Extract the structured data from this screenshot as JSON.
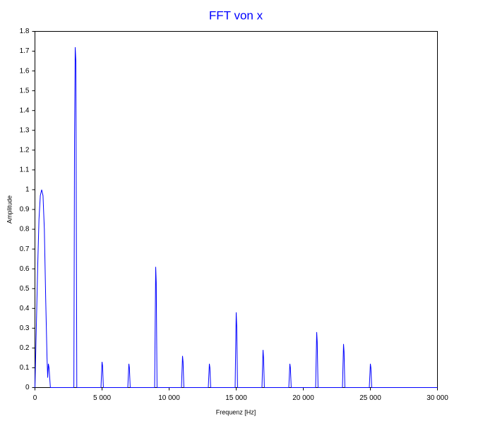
{
  "chart_data": {
    "type": "line",
    "title": "FFT von x",
    "xlabel": "Frequenz [Hz]",
    "ylabel": "Amplitude",
    "xlim": [
      0,
      30000
    ],
    "ylim": [
      0,
      1.8
    ],
    "xticks": [
      0,
      {
        "value": 5000,
        "label": "5 000"
      },
      {
        "value": 10000,
        "label": "10 000"
      },
      {
        "value": 15000,
        "label": "15 000"
      },
      {
        "value": 20000,
        "label": "20 000"
      },
      {
        "value": 25000,
        "label": "25 000"
      },
      {
        "value": 30000,
        "label": "30 000"
      }
    ],
    "yticks": [
      0,
      0.1,
      0.2,
      0.3,
      0.4,
      0.5,
      0.6,
      0.7,
      0.8,
      0.9,
      1,
      1.1,
      1.2,
      1.3,
      1.4,
      1.5,
      1.6,
      1.7,
      1.8
    ],
    "series": [
      {
        "color": "#0000ff",
        "x": [
          0,
          100,
          200,
          300,
          400,
          500,
          600,
          700,
          800,
          900,
          950,
          1000,
          1050,
          1150,
          2900,
          2950,
          3000,
          3050,
          3120,
          4920,
          5000,
          5040,
          5100,
          6920,
          7000,
          7040,
          7100,
          8920,
          9000,
          9040,
          9100,
          10920,
          11000,
          11040,
          11100,
          12920,
          13000,
          13040,
          13100,
          14920,
          15000,
          15040,
          15100,
          16920,
          17000,
          17040,
          17100,
          18920,
          19000,
          19040,
          19100,
          20920,
          21000,
          21040,
          21100,
          22920,
          23000,
          23040,
          23100,
          24920,
          25000,
          25040,
          25100,
          30000
        ],
        "values": [
          0,
          0.3,
          0.6,
          0.85,
          0.97,
          1.0,
          0.97,
          0.8,
          0.45,
          0.15,
          0.05,
          0.12,
          0.1,
          0,
          0,
          1.25,
          1.72,
          1.65,
          0,
          0,
          0.13,
          0.11,
          0,
          0,
          0.12,
          0.1,
          0,
          0,
          0.61,
          0.53,
          0,
          0,
          0.16,
          0.13,
          0,
          0,
          0.12,
          0.1,
          0,
          0,
          0.38,
          0.31,
          0,
          0,
          0.19,
          0.15,
          0,
          0,
          0.12,
          0.1,
          0,
          0,
          0.28,
          0.23,
          0,
          0,
          0.22,
          0.18,
          0,
          0,
          0.12,
          0.1,
          0,
          0
        ]
      }
    ]
  }
}
